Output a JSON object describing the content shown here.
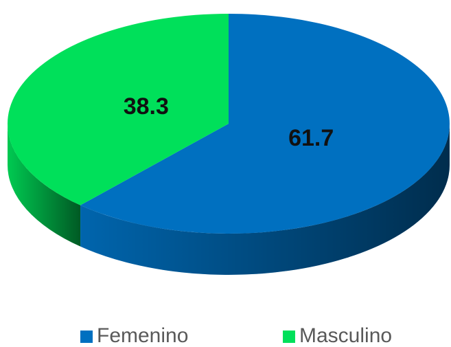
{
  "chart_data": {
    "type": "pie",
    "categories": [
      "Femenino",
      "Masculino"
    ],
    "values": [
      61.7,
      38.3
    ],
    "colors": [
      "#0070c0",
      "#00e05a"
    ],
    "legend": "bottom"
  }
}
